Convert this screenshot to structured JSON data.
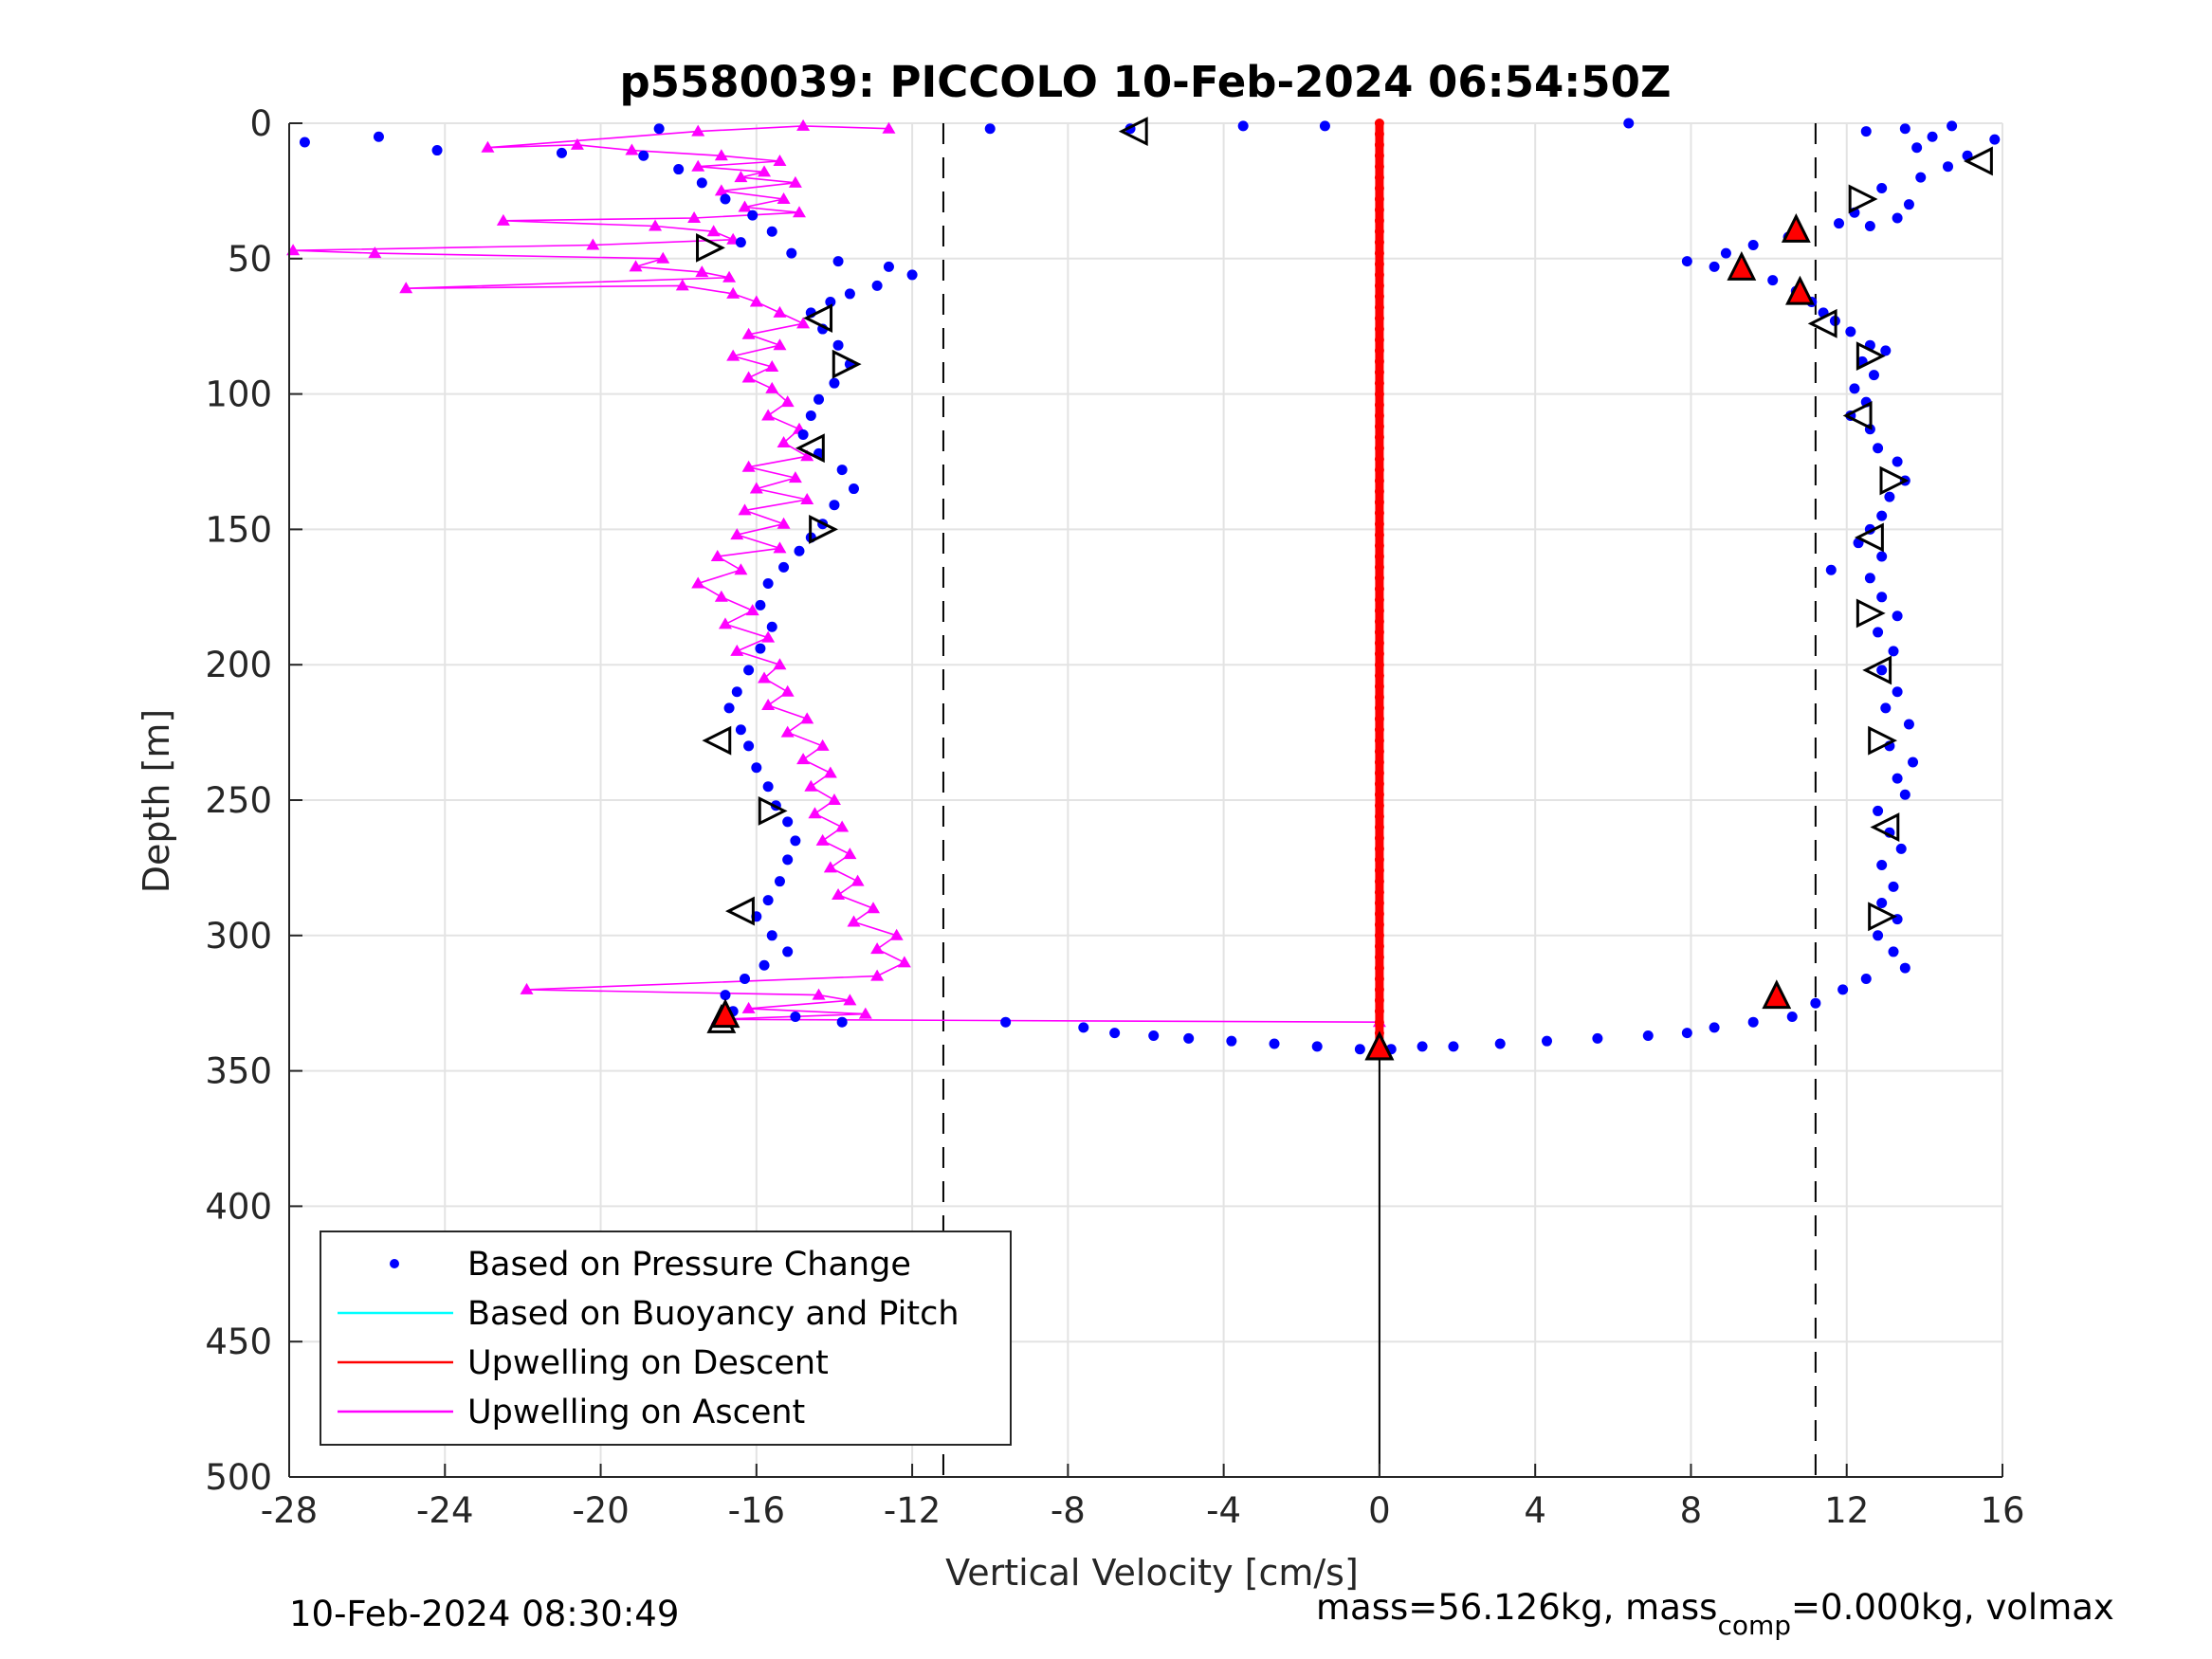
{
  "chart_data": {
    "type": "scatter",
    "title": "p5580039: PICCOLO 10-Feb-2024 06:54:50Z",
    "xlabel": "Vertical Velocity [cm/s]",
    "ylabel": "Depth [m]",
    "xlim": [
      -28,
      16
    ],
    "ylim": [
      500,
      0
    ],
    "y_reversed": true,
    "xticks": [
      "-28",
      "-24",
      "-20",
      "-16",
      "-12",
      "-8",
      "-4",
      "0",
      "4",
      "8",
      "12",
      "16"
    ],
    "yticks": [
      "0",
      "50",
      "100",
      "150",
      "200",
      "250",
      "300",
      "350",
      "400",
      "450",
      "500"
    ],
    "grid": true,
    "legend_position": "bottom-left",
    "legend": [
      {
        "label": "Based on Pressure Change",
        "marker": "dot",
        "color": "#0000ff"
      },
      {
        "label": "Based on Buoyancy and Pitch",
        "marker": "line",
        "color": "#00ffff"
      },
      {
        "label": "Upwelling on Descent",
        "marker": "line",
        "color": "#ff0000"
      },
      {
        "label": "Upwelling on Ascent",
        "marker": "line",
        "color": "#ff00ff"
      }
    ],
    "reference_lines": [
      {
        "x": -11.2,
        "style": "dashed",
        "color": "#000000"
      },
      {
        "x": 11.2,
        "style": "dashed",
        "color": "#000000"
      },
      {
        "x": 0,
        "y_from": 340,
        "y_to": 500,
        "style": "solid",
        "color": "#000000"
      }
    ],
    "series": [
      {
        "name": "Based on Pressure Change",
        "color": "#0000ff",
        "descent": [
          [
            6.4,
            0
          ],
          [
            13.5,
            2
          ],
          [
            14.7,
            1
          ],
          [
            15.8,
            6
          ],
          [
            14.2,
            5
          ],
          [
            12.5,
            3
          ],
          [
            13.8,
            9
          ],
          [
            15.1,
            12
          ],
          [
            14.6,
            16
          ],
          [
            13.9,
            20
          ],
          [
            12.9,
            24
          ],
          [
            13.6,
            30
          ],
          [
            12.2,
            33
          ],
          [
            13.3,
            35
          ],
          [
            12.6,
            38
          ],
          [
            11.8,
            37
          ],
          [
            10.5,
            42
          ],
          [
            9.6,
            45
          ],
          [
            8.9,
            48
          ],
          [
            7.9,
            51
          ],
          [
            8.6,
            53
          ],
          [
            9.4,
            55
          ],
          [
            10.1,
            58
          ],
          [
            10.7,
            62
          ],
          [
            11.1,
            66
          ],
          [
            11.4,
            70
          ],
          [
            11.7,
            73
          ],
          [
            12.1,
            77
          ],
          [
            12.6,
            82
          ],
          [
            13.0,
            84
          ],
          [
            12.4,
            88
          ],
          [
            12.7,
            93
          ],
          [
            12.2,
            98
          ],
          [
            12.5,
            103
          ],
          [
            12.1,
            108
          ],
          [
            12.6,
            113
          ],
          [
            12.8,
            120
          ],
          [
            13.3,
            125
          ],
          [
            13.5,
            132
          ],
          [
            13.1,
            138
          ],
          [
            12.9,
            145
          ],
          [
            12.6,
            150
          ],
          [
            12.3,
            155
          ],
          [
            12.9,
            160
          ],
          [
            11.6,
            165
          ],
          [
            12.6,
            168
          ],
          [
            12.9,
            175
          ],
          [
            13.3,
            182
          ],
          [
            12.8,
            188
          ],
          [
            13.2,
            195
          ],
          [
            12.9,
            202
          ],
          [
            13.3,
            210
          ],
          [
            13.0,
            216
          ],
          [
            13.6,
            222
          ],
          [
            13.1,
            230
          ],
          [
            13.7,
            236
          ],
          [
            13.3,
            242
          ],
          [
            13.5,
            248
          ],
          [
            12.8,
            254
          ],
          [
            13.1,
            262
          ],
          [
            13.4,
            268
          ],
          [
            12.9,
            274
          ],
          [
            13.2,
            282
          ],
          [
            12.9,
            288
          ],
          [
            13.3,
            294
          ],
          [
            12.8,
            300
          ],
          [
            13.2,
            306
          ],
          [
            13.5,
            312
          ],
          [
            12.5,
            316
          ],
          [
            11.9,
            320
          ],
          [
            11.2,
            325
          ],
          [
            10.6,
            330
          ],
          [
            9.6,
            332
          ],
          [
            8.6,
            334
          ],
          [
            7.9,
            336
          ],
          [
            6.9,
            337
          ],
          [
            5.6,
            338
          ],
          [
            4.3,
            339
          ],
          [
            3.1,
            340
          ],
          [
            1.9,
            341
          ],
          [
            1.1,
            341
          ],
          [
            0.3,
            342
          ]
        ],
        "ascent": [
          [
            -27.6,
            7
          ],
          [
            -25.7,
            5
          ],
          [
            -24.2,
            10
          ],
          [
            -21.0,
            11
          ],
          [
            -18.5,
            2
          ],
          [
            -18.9,
            12
          ],
          [
            -18.0,
            17
          ],
          [
            -17.4,
            22
          ],
          [
            -16.8,
            28
          ],
          [
            -16.1,
            34
          ],
          [
            -15.6,
            40
          ],
          [
            -16.4,
            44
          ],
          [
            -15.1,
            48
          ],
          [
            -13.9,
            51
          ],
          [
            -12.6,
            53
          ],
          [
            -12.0,
            56
          ],
          [
            -12.9,
            60
          ],
          [
            -13.6,
            63
          ],
          [
            -14.1,
            66
          ],
          [
            -14.6,
            70
          ],
          [
            -14.3,
            76
          ],
          [
            -13.9,
            82
          ],
          [
            -13.6,
            89
          ],
          [
            -14.0,
            96
          ],
          [
            -14.4,
            102
          ],
          [
            -14.6,
            108
          ],
          [
            -14.8,
            115
          ],
          [
            -14.4,
            122
          ],
          [
            -13.8,
            128
          ],
          [
            -13.5,
            135
          ],
          [
            -14.0,
            141
          ],
          [
            -14.3,
            148
          ],
          [
            -14.6,
            153
          ],
          [
            -14.9,
            158
          ],
          [
            -15.3,
            164
          ],
          [
            -15.7,
            170
          ],
          [
            -15.9,
            178
          ],
          [
            -15.6,
            186
          ],
          [
            -15.9,
            194
          ],
          [
            -16.2,
            202
          ],
          [
            -16.5,
            210
          ],
          [
            -16.7,
            216
          ],
          [
            -16.4,
            224
          ],
          [
            -16.2,
            230
          ],
          [
            -16.0,
            238
          ],
          [
            -15.7,
            245
          ],
          [
            -15.5,
            252
          ],
          [
            -15.2,
            258
          ],
          [
            -15.0,
            265
          ],
          [
            -15.2,
            272
          ],
          [
            -15.4,
            280
          ],
          [
            -15.7,
            287
          ],
          [
            -16.0,
            293
          ],
          [
            -15.6,
            300
          ],
          [
            -15.2,
            306
          ],
          [
            -15.8,
            311
          ],
          [
            -16.3,
            316
          ],
          [
            -16.8,
            322
          ],
          [
            -16.6,
            328
          ],
          [
            -15.0,
            330
          ],
          [
            -13.8,
            332
          ],
          [
            -9.6,
            332
          ],
          [
            -7.6,
            334
          ],
          [
            -6.8,
            336
          ],
          [
            -5.8,
            337
          ],
          [
            -4.9,
            338
          ],
          [
            -3.8,
            339
          ],
          [
            -2.7,
            340
          ],
          [
            -1.6,
            341
          ],
          [
            -0.5,
            342
          ],
          [
            -10.0,
            2
          ],
          [
            -6.4,
            2
          ],
          [
            -3.5,
            1
          ],
          [
            -1.4,
            1
          ]
        ]
      },
      {
        "name": "Upwelling on Descent",
        "color": "#ff0000",
        "line_x": 0,
        "depth_from": 0,
        "depth_to": 340
      },
      {
        "name": "Upwelling on Ascent",
        "color": "#ff00ff",
        "points": [
          [
            -12.6,
            2
          ],
          [
            -14.8,
            1
          ],
          [
            -17.5,
            3
          ],
          [
            -22.9,
            9
          ],
          [
            -20.6,
            8
          ],
          [
            -19.2,
            10
          ],
          [
            -16.9,
            12
          ],
          [
            -15.4,
            14
          ],
          [
            -17.5,
            16
          ],
          [
            -15.8,
            18
          ],
          [
            -16.4,
            20
          ],
          [
            -15.0,
            22
          ],
          [
            -16.9,
            25
          ],
          [
            -15.3,
            28
          ],
          [
            -16.3,
            31
          ],
          [
            -14.9,
            33
          ],
          [
            -17.6,
            35
          ],
          [
            -22.5,
            36
          ],
          [
            -18.6,
            38
          ],
          [
            -17.1,
            40
          ],
          [
            -16.6,
            43
          ],
          [
            -20.2,
            45
          ],
          [
            -27.9,
            47
          ],
          [
            -25.8,
            48
          ],
          [
            -18.4,
            50
          ],
          [
            -19.1,
            53
          ],
          [
            -17.4,
            55
          ],
          [
            -16.7,
            57
          ],
          [
            -25.0,
            61
          ],
          [
            -17.9,
            60
          ],
          [
            -16.6,
            63
          ],
          [
            -16.0,
            66
          ],
          [
            -15.4,
            70
          ],
          [
            -14.8,
            74
          ],
          [
            -16.2,
            78
          ],
          [
            -15.4,
            82
          ],
          [
            -16.6,
            86
          ],
          [
            -15.6,
            90
          ],
          [
            -16.2,
            94
          ],
          [
            -15.6,
            98
          ],
          [
            -15.2,
            103
          ],
          [
            -15.7,
            108
          ],
          [
            -14.9,
            113
          ],
          [
            -15.3,
            118
          ],
          [
            -14.7,
            123
          ],
          [
            -16.2,
            127
          ],
          [
            -15.0,
            131
          ],
          [
            -16.0,
            135
          ],
          [
            -14.7,
            139
          ],
          [
            -16.3,
            143
          ],
          [
            -15.3,
            148
          ],
          [
            -16.5,
            152
          ],
          [
            -15.4,
            157
          ],
          [
            -17.0,
            160
          ],
          [
            -16.4,
            165
          ],
          [
            -17.5,
            170
          ],
          [
            -16.9,
            175
          ],
          [
            -16.1,
            180
          ],
          [
            -16.8,
            185
          ],
          [
            -15.7,
            190
          ],
          [
            -16.5,
            195
          ],
          [
            -15.4,
            200
          ],
          [
            -15.8,
            205
          ],
          [
            -15.2,
            210
          ],
          [
            -15.7,
            215
          ],
          [
            -14.7,
            220
          ],
          [
            -15.2,
            225
          ],
          [
            -14.3,
            230
          ],
          [
            -14.8,
            235
          ],
          [
            -14.1,
            240
          ],
          [
            -14.6,
            245
          ],
          [
            -14.0,
            250
          ],
          [
            -14.5,
            255
          ],
          [
            -13.8,
            260
          ],
          [
            -14.3,
            265
          ],
          [
            -13.6,
            270
          ],
          [
            -14.1,
            275
          ],
          [
            -13.4,
            280
          ],
          [
            -13.9,
            285
          ],
          [
            -13.0,
            290
          ],
          [
            -13.5,
            295
          ],
          [
            -12.4,
            300
          ],
          [
            -12.9,
            305
          ],
          [
            -12.2,
            310
          ],
          [
            -12.9,
            315
          ],
          [
            -21.9,
            320
          ],
          [
            -14.4,
            322
          ],
          [
            -13.6,
            324
          ],
          [
            -16.2,
            327
          ],
          [
            -13.2,
            329
          ],
          [
            -17.0,
            331
          ],
          [
            0,
            332
          ]
        ]
      }
    ],
    "markers": {
      "open_triangles": [
        [
          -6.3,
          3,
          "left"
        ],
        [
          15.4,
          14,
          "left"
        ],
        [
          12.4,
          28,
          "right"
        ],
        [
          -17.2,
          46,
          "right"
        ],
        [
          -14.4,
          72,
          "left"
        ],
        [
          11.4,
          74,
          "left"
        ],
        [
          -13.7,
          89,
          "right"
        ],
        [
          12.6,
          86,
          "right"
        ],
        [
          12.3,
          108,
          "left"
        ],
        [
          -14.6,
          120,
          "left"
        ],
        [
          13.2,
          132,
          "right"
        ],
        [
          -14.3,
          150,
          "right"
        ],
        [
          12.6,
          153,
          "left"
        ],
        [
          12.6,
          181,
          "right"
        ],
        [
          12.8,
          202,
          "left"
        ],
        [
          -17.0,
          228,
          "left"
        ],
        [
          12.9,
          228,
          "right"
        ],
        [
          -15.6,
          254,
          "right"
        ],
        [
          13.0,
          260,
          "left"
        ],
        [
          -16.4,
          291,
          "left"
        ],
        [
          12.9,
          293,
          "right"
        ],
        [
          -16.9,
          331,
          "up"
        ],
        [
          0,
          341,
          "up"
        ]
      ],
      "red_triangles": [
        [
          10.7,
          39
        ],
        [
          9.3,
          53
        ],
        [
          10.8,
          62
        ],
        [
          -16.8,
          329
        ],
        [
          10.2,
          322
        ],
        [
          0,
          341
        ]
      ]
    }
  },
  "footer": {
    "timestamp": "10-Feb-2024 08:30:49",
    "mass_text": "mass=56.126kg, mass",
    "mass_sub": "comp",
    "mass_text2": "=0.000kg, volmax"
  }
}
